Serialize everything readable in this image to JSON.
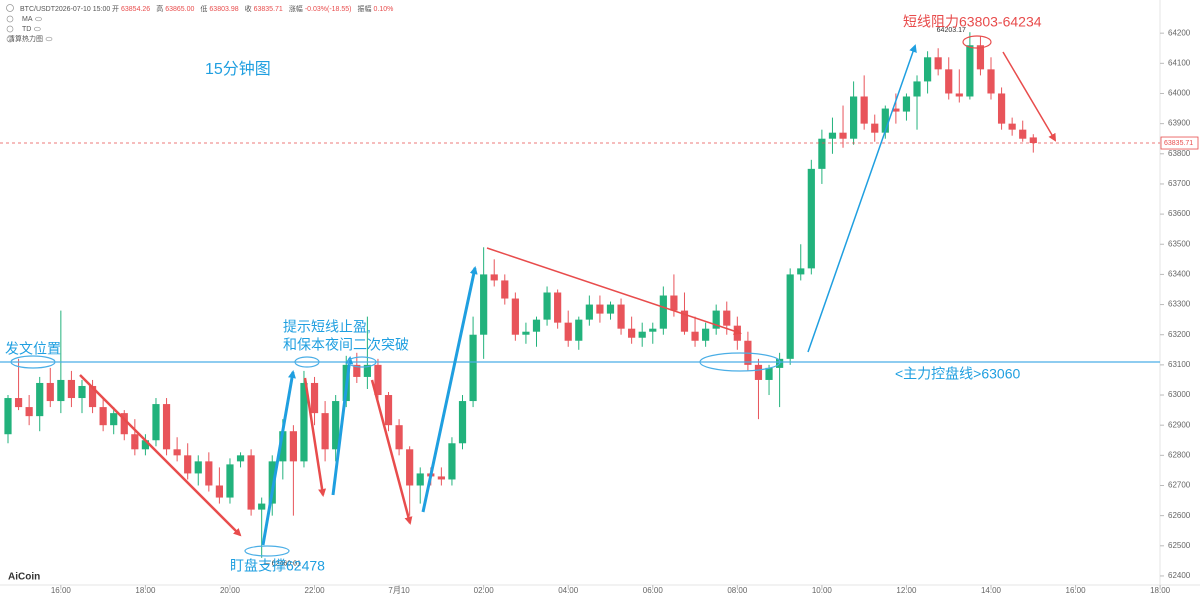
{
  "header": {
    "symbol": "BTC/USDT",
    "time": "2026-07-10 15:00",
    "fields": [
      {
        "label": "开",
        "value": "63854.26"
      },
      {
        "label": "高",
        "value": "63865.00"
      },
      {
        "label": "低",
        "value": "63803.98"
      },
      {
        "label": "收",
        "value": "63835.71"
      },
      {
        "label": "涨幅",
        "value": "-0.03%(-18.55)"
      },
      {
        "label": "振幅",
        "value": "0.10%"
      }
    ],
    "indicators": [
      "MA",
      "TD",
      "清算热力图"
    ]
  },
  "logo": "AiCoin",
  "annotations": [
    "15分钟图",
    "发文位置",
    "提示短线止盈,",
    "和保本夜间二次突破",
    "盯盘支撑62478",
    "短线阻力63803-64234",
    "<主力控盘线>63060"
  ],
  "chart_data": {
    "type": "candlestick",
    "up_color": "#22b27c",
    "down_color": "#e8545a",
    "categories": [
      "14:45",
      "15:00",
      "15:15",
      "15:30",
      "15:45",
      "16:00",
      "16:15",
      "16:30",
      "16:45",
      "17:00",
      "17:15",
      "17:30",
      "17:45",
      "18:00",
      "18:15",
      "18:30",
      "18:45",
      "19:00",
      "19:15",
      "19:30",
      "19:45",
      "20:00",
      "20:15",
      "20:30",
      "20:45",
      "21:00",
      "21:15",
      "21:30",
      "21:45",
      "22:00",
      "22:15",
      "22:30",
      "22:45",
      "23:00",
      "23:15",
      "23:30",
      "23:45",
      "00:00",
      "00:15",
      "00:30",
      "00:45",
      "01:00",
      "01:15",
      "01:30",
      "01:45",
      "02:00",
      "02:15",
      "02:30",
      "02:45",
      "03:00",
      "03:15",
      "03:30",
      "03:45",
      "04:00",
      "04:15",
      "04:30",
      "04:45",
      "05:00",
      "05:15",
      "05:30",
      "05:45",
      "06:00",
      "06:15",
      "06:30",
      "06:45",
      "07:00",
      "07:15",
      "07:30",
      "07:45",
      "08:00",
      "08:15",
      "08:30",
      "08:45",
      "09:00",
      "09:15",
      "09:30",
      "09:45",
      "10:00",
      "10:15",
      "10:30",
      "10:45",
      "11:00",
      "11:15",
      "11:30",
      "11:45",
      "12:00",
      "12:15",
      "12:30",
      "12:45",
      "13:00",
      "13:15",
      "13:30",
      "13:45",
      "14:00",
      "14:15",
      "14:30",
      "14:45",
      "15:00"
    ],
    "open": [
      62870,
      62990,
      62960,
      62930,
      63040,
      62980,
      63050,
      62990,
      63030,
      62960,
      62900,
      62940,
      62870,
      62820,
      62850,
      62970,
      62820,
      62800,
      62740,
      62780,
      62700,
      62660,
      62780,
      62800,
      62620,
      62640,
      62780,
      62880,
      62780,
      63040,
      62940,
      62820,
      62980,
      63100,
      63060,
      63100,
      63000,
      62900,
      62820,
      62700,
      62740,
      62730,
      62720,
      62840,
      62980,
      63200,
      63400,
      63380,
      63320,
      63200,
      63210,
      63250,
      63340,
      63240,
      63180,
      63250,
      63300,
      63270,
      63300,
      63220,
      63190,
      63210,
      63220,
      63330,
      63280,
      63210,
      63180,
      63220,
      63280,
      63230,
      63180,
      63100,
      63050,
      63090,
      63120,
      63400,
      63420,
      63750,
      63850,
      63870,
      63850,
      63990,
      63900,
      63870,
      63950,
      63940,
      63990,
      64040,
      64120,
      64080,
      64000,
      63990,
      64160,
      64080,
      64000,
      63900,
      63880,
      63854.26
    ],
    "high": [
      63000,
      63120,
      63000,
      63060,
      63090,
      63280,
      63080,
      63050,
      63050,
      62990,
      62960,
      62950,
      62920,
      62870,
      62990,
      62990,
      62860,
      62840,
      62800,
      62810,
      62760,
      62790,
      62810,
      62820,
      62660,
      62800,
      62920,
      62900,
      63080,
      63060,
      62980,
      63000,
      63130,
      63140,
      63260,
      63120,
      63010,
      62920,
      62830,
      62760,
      62760,
      62760,
      62860,
      63000,
      63260,
      63490,
      63450,
      63400,
      63340,
      63240,
      63260,
      63360,
      63350,
      63280,
      63260,
      63330,
      63330,
      63310,
      63320,
      63260,
      63240,
      63240,
      63360,
      63400,
      63340,
      63260,
      63240,
      63300,
      63310,
      63260,
      63210,
      63120,
      63100,
      63140,
      63420,
      63500,
      63780,
      63880,
      63920,
      63960,
      64040,
      64060,
      63930,
      63960,
      64000,
      64000,
      64060,
      64140,
      64150,
      64120,
      64080,
      64203.17,
      64190,
      64120,
      64020,
      63920,
      63910,
      63865
    ],
    "low": [
      62840,
      62950,
      62900,
      62880,
      62960,
      62940,
      62960,
      62940,
      62940,
      62880,
      62870,
      62850,
      62800,
      62800,
      62830,
      62800,
      62780,
      62720,
      62700,
      62680,
      62640,
      62640,
      62760,
      62600,
      62460.01,
      62600,
      62720,
      62600,
      62760,
      62900,
      62780,
      62780,
      62960,
      63040,
      63020,
      62980,
      62880,
      62800,
      62600,
      62640,
      62700,
      62700,
      62700,
      62820,
      62960,
      63120,
      63360,
      63300,
      63180,
      63170,
      63160,
      63230,
      63220,
      63160,
      63150,
      63230,
      63240,
      63250,
      63200,
      63170,
      63160,
      63170,
      63200,
      63260,
      63200,
      63160,
      63160,
      63200,
      63200,
      63150,
      63080,
      62920,
      63000,
      62960,
      63100,
      63380,
      63400,
      63700,
      63800,
      63820,
      63830,
      63880,
      63840,
      63850,
      63900,
      63910,
      63880,
      64000,
      64060,
      63980,
      63970,
      63980,
      64060,
      63980,
      63880,
      63860,
      63840,
      63803.98
    ],
    "close": [
      62990,
      62960,
      62930,
      63040,
      62980,
      63050,
      62990,
      63030,
      62960,
      62900,
      62940,
      62870,
      62820,
      62850,
      62970,
      62820,
      62800,
      62740,
      62780,
      62700,
      62660,
      62770,
      62800,
      62620,
      62640,
      62780,
      62880,
      62780,
      63040,
      62940,
      62820,
      62980,
      63100,
      63060,
      63100,
      63000,
      62900,
      62820,
      62700,
      62740,
      62730,
      62720,
      62840,
      62980,
      63200,
      63400,
      63380,
      63320,
      63200,
      63210,
      63250,
      63340,
      63240,
      63180,
      63250,
      63300,
      63270,
      63300,
      63220,
      63190,
      63210,
      63220,
      63330,
      63280,
      63210,
      63180,
      63220,
      63280,
      63230,
      63180,
      63100,
      63050,
      63090,
      63120,
      63400,
      63420,
      63750,
      63850,
      63870,
      63850,
      63990,
      63900,
      63870,
      63950,
      63940,
      63990,
      64040,
      64120,
      64080,
      64000,
      63990,
      64160,
      64080,
      64000,
      63900,
      63880,
      63850,
      63835.71
    ],
    "last_price": 63835.71,
    "last_price_color": "#e84c4c",
    "ylim": [
      62370,
      64310
    ],
    "yticks": [
      62400,
      62500,
      62600,
      62700,
      62800,
      62900,
      63000,
      63100,
      63200,
      63300,
      63400,
      63500,
      63600,
      63700,
      63800,
      63900,
      64000,
      64100,
      64200
    ],
    "xticks": [
      "16:00",
      "18:00",
      "20:00",
      "22:00",
      {
        "value": "00:00",
        "label": "7月10"
      },
      "02:00",
      "04:00",
      "06:00",
      "08:00",
      "10:00",
      "12:00",
      "14:00",
      "16:00",
      "18:00"
    ],
    "grid": false
  }
}
